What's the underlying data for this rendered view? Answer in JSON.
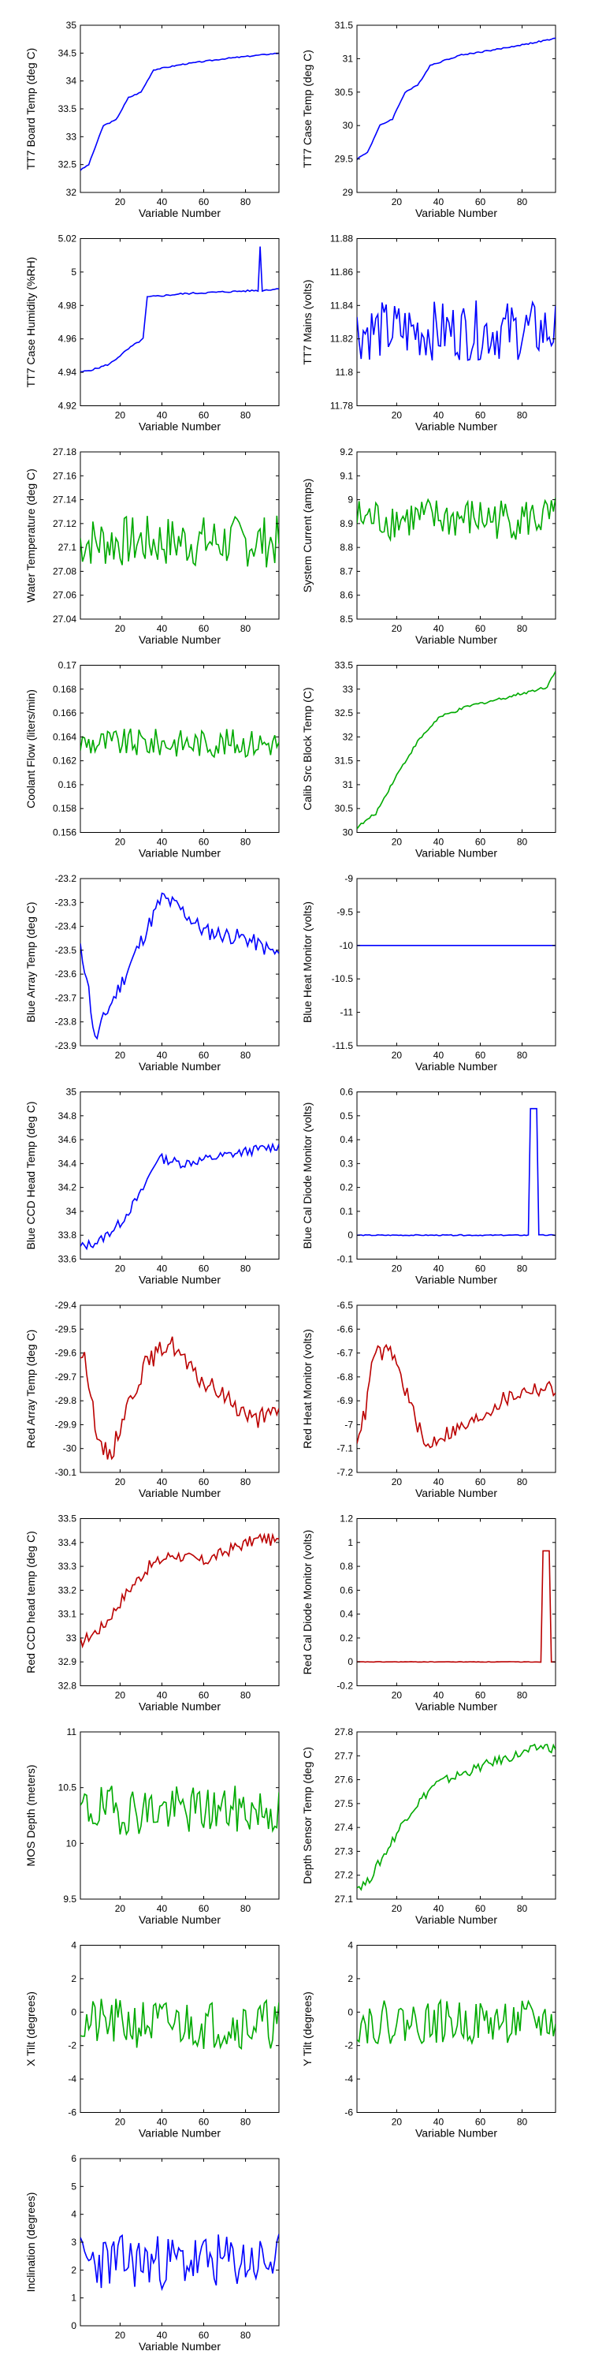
{
  "xlabel": "Variable Number",
  "xlim": [
    1,
    96
  ],
  "xticks": [
    20,
    40,
    60,
    80
  ],
  "colors": {
    "blue": "#0000ff",
    "green": "#00aa00",
    "red": "#bb0000"
  },
  "chart_data": [
    {
      "type": "line",
      "ylabel": "TT7 Board Temp (deg C)",
      "color": "blue",
      "ylim": [
        32,
        35
      ],
      "yticks": [
        32,
        32.5,
        33,
        33.5,
        34,
        34.5,
        35
      ],
      "ytick_labels": [
        "32",
        "32.5",
        "33",
        "33.5",
        "34",
        "34.5",
        "35"
      ],
      "pattern": "rise",
      "shape": [
        [
          1,
          32.4
        ],
        [
          5,
          32.5
        ],
        [
          12,
          33.2
        ],
        [
          18,
          33.3
        ],
        [
          24,
          33.7
        ],
        [
          30,
          33.8
        ],
        [
          36,
          34.2
        ],
        [
          50,
          34.3
        ],
        [
          70,
          34.4
        ],
        [
          96,
          34.5
        ]
      ],
      "noise": 0.01
    },
    {
      "type": "line",
      "ylabel": "TT7 Case Temp (deg C)",
      "color": "blue",
      "ylim": [
        29,
        31.5
      ],
      "yticks": [
        29,
        29.5,
        30,
        30.5,
        31,
        31.5
      ],
      "ytick_labels": [
        "29",
        "29.5",
        "30",
        "30.5",
        "31",
        "31.5"
      ],
      "pattern": "rise",
      "shape": [
        [
          1,
          29.5
        ],
        [
          6,
          29.6
        ],
        [
          12,
          30.0
        ],
        [
          18,
          30.1
        ],
        [
          24,
          30.5
        ],
        [
          30,
          30.6
        ],
        [
          36,
          30.9
        ],
        [
          50,
          31.05
        ],
        [
          70,
          31.15
        ],
        [
          96,
          31.3
        ]
      ],
      "noise": 0.01
    },
    {
      "type": "line",
      "ylabel": "TT7 Case Humidity (%RH)",
      "color": "blue",
      "ylim": [
        4.92,
        5.02
      ],
      "yticks": [
        4.92,
        4.94,
        4.96,
        4.98,
        5,
        5.02
      ],
      "ytick_labels": [
        "4.92",
        "4.94",
        "4.96",
        "4.98",
        "5",
        "5.02"
      ],
      "pattern": "rise",
      "shape": [
        [
          1,
          4.94
        ],
        [
          8,
          4.942
        ],
        [
          15,
          4.945
        ],
        [
          25,
          4.955
        ],
        [
          31,
          4.96
        ],
        [
          33,
          4.985
        ],
        [
          50,
          4.987
        ],
        [
          86,
          4.989
        ],
        [
          87,
          5.015
        ],
        [
          88,
          4.989
        ],
        [
          96,
          4.99
        ]
      ],
      "noise": 0.0005
    },
    {
      "type": "line",
      "ylabel": "TT7 Mains  (volts)",
      "color": "blue",
      "ylim": [
        11.78,
        11.88
      ],
      "yticks": [
        11.78,
        11.8,
        11.82,
        11.84,
        11.86,
        11.88
      ],
      "ytick_labels": [
        "11.78",
        "11.8",
        "11.82",
        "11.84",
        "11.86",
        "11.88"
      ],
      "pattern": "noise",
      "mean": 11.825,
      "noise": 0.018
    },
    {
      "type": "line",
      "ylabel": "Water Temperature (deg C)",
      "color": "green",
      "ylim": [
        27.04,
        27.18
      ],
      "yticks": [
        27.04,
        27.06,
        27.08,
        27.1,
        27.12,
        27.14,
        27.16,
        27.18
      ],
      "ytick_labels": [
        "27.04",
        "27.06",
        "27.08",
        "27.1",
        "27.12",
        "27.14",
        "27.16",
        "27.18"
      ],
      "pattern": "noise",
      "mean": 27.105,
      "noise": 0.022
    },
    {
      "type": "line",
      "ylabel": "System Current (amps)",
      "color": "green",
      "ylim": [
        8.5,
        9.2
      ],
      "yticks": [
        8.5,
        8.6,
        8.7,
        8.8,
        8.9,
        9,
        9.1,
        9.2
      ],
      "ytick_labels": [
        "8.5",
        "8.6",
        "8.7",
        "8.8",
        "8.9",
        "9",
        "9.1",
        "9.2"
      ],
      "pattern": "noise",
      "mean": 8.92,
      "noise": 0.09
    },
    {
      "type": "line",
      "ylabel": "Coolant Flow (liters/min)",
      "color": "green",
      "ylim": [
        0.156,
        0.17
      ],
      "yticks": [
        0.156,
        0.158,
        0.16,
        0.162,
        0.164,
        0.166,
        0.168,
        0.17
      ],
      "ytick_labels": [
        "0.156",
        "0.158",
        "0.16",
        "0.162",
        "0.164",
        "0.166",
        "0.168",
        "0.17"
      ],
      "pattern": "noise",
      "mean": 0.1635,
      "noise": 0.0012
    },
    {
      "type": "line",
      "ylabel": "Calib Src Block Temp (C)",
      "color": "green",
      "ylim": [
        30,
        33.5
      ],
      "yticks": [
        30,
        30.5,
        31,
        31.5,
        32,
        32.5,
        33,
        33.5
      ],
      "ytick_labels": [
        "30",
        "30.5",
        "31",
        "31.5",
        "32",
        "32.5",
        "33",
        "33.5"
      ],
      "pattern": "rise",
      "shape": [
        [
          1,
          30.1
        ],
        [
          10,
          30.4
        ],
        [
          20,
          31.2
        ],
        [
          30,
          31.9
        ],
        [
          40,
          32.4
        ],
        [
          55,
          32.65
        ],
        [
          70,
          32.8
        ],
        [
          88,
          33.0
        ],
        [
          92,
          33.05
        ],
        [
          96,
          33.4
        ]
      ],
      "noise": 0.03
    },
    {
      "type": "line",
      "ylabel": "Blue Array Temp (deg C)",
      "color": "blue",
      "ylim": [
        -23.9,
        -23.2
      ],
      "yticks": [
        -23.9,
        -23.8,
        -23.7,
        -23.6,
        -23.5,
        -23.4,
        -23.3,
        -23.2
      ],
      "ytick_labels": [
        "-23.9",
        "-23.8",
        "-23.7",
        "-23.6",
        "-23.5",
        "-23.4",
        "-23.3",
        "-23.2"
      ],
      "pattern": "rise",
      "shape": [
        [
          1,
          -23.5
        ],
        [
          4,
          -23.6
        ],
        [
          8,
          -23.88
        ],
        [
          14,
          -23.75
        ],
        [
          20,
          -23.65
        ],
        [
          28,
          -23.5
        ],
        [
          40,
          -23.28
        ],
        [
          48,
          -23.32
        ],
        [
          60,
          -23.42
        ],
        [
          80,
          -23.45
        ],
        [
          96,
          -23.52
        ]
      ],
      "noise": 0.035
    },
    {
      "type": "line",
      "ylabel": "Blue Heat Monitor (volts)",
      "color": "blue",
      "ylim": [
        -11.5,
        -9
      ],
      "yticks": [
        -11.5,
        -11,
        -10.5,
        -10,
        -9.5,
        -9
      ],
      "ytick_labels": [
        "-11.5",
        "-11",
        "-10.5",
        "-10",
        "-9.5",
        "-9"
      ],
      "pattern": "flat",
      "mean": -10,
      "noise": 0
    },
    {
      "type": "line",
      "ylabel": "Blue CCD Head Temp (deg C)",
      "color": "blue",
      "ylim": [
        33.6,
        35
      ],
      "yticks": [
        33.6,
        33.8,
        34,
        34.2,
        34.4,
        34.6,
        34.8,
        35
      ],
      "ytick_labels": [
        "33.6",
        "33.8",
        "34",
        "34.2",
        "34.4",
        "34.6",
        "34.8",
        "35"
      ],
      "pattern": "rise",
      "shape": [
        [
          1,
          33.7
        ],
        [
          10,
          33.75
        ],
        [
          20,
          33.9
        ],
        [
          30,
          34.15
        ],
        [
          38,
          34.45
        ],
        [
          50,
          34.4
        ],
        [
          65,
          34.45
        ],
        [
          80,
          34.5
        ],
        [
          96,
          34.55
        ]
      ],
      "noise": 0.04
    },
    {
      "type": "line",
      "ylabel": "Blue Cal Diode Monitor (volts)",
      "color": "blue",
      "ylim": [
        -0.1,
        0.6
      ],
      "yticks": [
        -0.1,
        0,
        0.1,
        0.2,
        0.3,
        0.4,
        0.5,
        0.6
      ],
      "ytick_labels": [
        "-0.1",
        "0",
        "0.1",
        "0.2",
        "0.3",
        "0.4",
        "0.5",
        "0.6"
      ],
      "pattern": "spike",
      "mean": 0,
      "noise": 0.002,
      "spike": [
        84,
        87,
        0.53
      ]
    },
    {
      "type": "line",
      "ylabel": "Red Array Temp (deg C)",
      "color": "red",
      "ylim": [
        -30.1,
        -29.4
      ],
      "yticks": [
        -30.1,
        -30,
        -29.9,
        -29.8,
        -29.7,
        -29.6,
        -29.5,
        -29.4
      ],
      "ytick_labels": [
        "-30.1",
        "-30",
        "-29.9",
        "-29.8",
        "-29.7",
        "-29.6",
        "-29.5",
        "-29.4"
      ],
      "pattern": "rise",
      "shape": [
        [
          1,
          -29.6
        ],
        [
          4,
          -29.65
        ],
        [
          10,
          -30.0
        ],
        [
          16,
          -30.02
        ],
        [
          22,
          -29.85
        ],
        [
          32,
          -29.65
        ],
        [
          44,
          -29.55
        ],
        [
          56,
          -29.7
        ],
        [
          70,
          -29.78
        ],
        [
          84,
          -29.88
        ],
        [
          96,
          -29.85
        ]
      ],
      "noise": 0.04
    },
    {
      "type": "line",
      "ylabel": "Red Heat Monitor (volts)",
      "color": "red",
      "ylim": [
        -7.2,
        -6.5
      ],
      "yticks": [
        -7.2,
        -7.1,
        -7,
        -6.9,
        -6.8,
        -6.7,
        -6.6,
        -6.5
      ],
      "ytick_labels": [
        "-7.2",
        "-7.1",
        "-7",
        "-6.9",
        "-6.8",
        "-6.7",
        "-6.6",
        "-6.5"
      ],
      "pattern": "rise",
      "shape": [
        [
          1,
          -7.05
        ],
        [
          5,
          -6.95
        ],
        [
          9,
          -6.7
        ],
        [
          18,
          -6.7
        ],
        [
          24,
          -6.85
        ],
        [
          34,
          -7.1
        ],
        [
          40,
          -7.05
        ],
        [
          55,
          -7.0
        ],
        [
          70,
          -6.9
        ],
        [
          84,
          -6.85
        ],
        [
          96,
          -6.85
        ]
      ],
      "noise": 0.035
    },
    {
      "type": "line",
      "ylabel": "Red CCD head temp (deg C)",
      "color": "red",
      "ylim": [
        32.8,
        33.5
      ],
      "yticks": [
        32.8,
        32.9,
        33,
        33.1,
        33.2,
        33.3,
        33.4,
        33.5
      ],
      "ytick_labels": [
        "32.8",
        "32.9",
        "33",
        "33.1",
        "33.2",
        "33.3",
        "33.4",
        "33.5"
      ],
      "pattern": "rise",
      "shape": [
        [
          1,
          32.98
        ],
        [
          12,
          33.05
        ],
        [
          24,
          33.2
        ],
        [
          34,
          33.3
        ],
        [
          45,
          33.35
        ],
        [
          60,
          33.32
        ],
        [
          75,
          33.38
        ],
        [
          88,
          33.42
        ],
        [
          96,
          33.4
        ]
      ],
      "noise": 0.025
    },
    {
      "type": "line",
      "ylabel": "Red Cal Diode Monitor (volts)",
      "color": "red",
      "ylim": [
        -0.2,
        1.2
      ],
      "yticks": [
        -0.2,
        0,
        0.2,
        0.4,
        0.6,
        0.8,
        1,
        1.2
      ],
      "ytick_labels": [
        "-0.2",
        "0",
        "0.2",
        "0.4",
        "0.6",
        "0.8",
        "1",
        "1.2"
      ],
      "pattern": "spike",
      "mean": 0,
      "noise": 0.002,
      "spike": [
        90,
        93,
        0.93
      ]
    },
    {
      "type": "line",
      "ylabel": "MOS Depth  (meters)",
      "color": "green",
      "ylim": [
        9.5,
        11
      ],
      "yticks": [
        9.5,
        10,
        10.5,
        11
      ],
      "ytick_labels": [
        "9.5",
        "10",
        "10.5",
        "11"
      ],
      "pattern": "noise",
      "mean": 10.3,
      "noise": 0.22
    },
    {
      "type": "line",
      "ylabel": "Depth Sensor Temp (deg C)",
      "color": "green",
      "ylim": [
        27.1,
        27.8
      ],
      "yticks": [
        27.1,
        27.2,
        27.3,
        27.4,
        27.5,
        27.6,
        27.7,
        27.8
      ],
      "ytick_labels": [
        "27.1",
        "27.2",
        "27.3",
        "27.4",
        "27.5",
        "27.6",
        "27.7",
        "27.8"
      ],
      "pattern": "rise",
      "shape": [
        [
          1,
          27.15
        ],
        [
          6,
          27.17
        ],
        [
          15,
          27.3
        ],
        [
          25,
          27.45
        ],
        [
          38,
          27.58
        ],
        [
          50,
          27.62
        ],
        [
          65,
          27.67
        ],
        [
          80,
          27.71
        ],
        [
          90,
          27.74
        ],
        [
          96,
          27.73
        ]
      ],
      "noise": 0.02
    },
    {
      "type": "line",
      "ylabel": "X Tilt  (degrees)",
      "color": "green",
      "ylim": [
        -6,
        4
      ],
      "yticks": [
        -6,
        -4,
        -2,
        0,
        2,
        4
      ],
      "ytick_labels": [
        "-6",
        "-4",
        "-2",
        "0",
        "2",
        "4"
      ],
      "pattern": "noise",
      "mean": -0.7,
      "noise": 1.5
    },
    {
      "type": "line",
      "ylabel": "Y Tilt  (degrees)",
      "color": "green",
      "ylim": [
        -6,
        4
      ],
      "yticks": [
        -6,
        -4,
        -2,
        0,
        2,
        4
      ],
      "ytick_labels": [
        "-6",
        "-4",
        "-2",
        "0",
        "2",
        "4"
      ],
      "pattern": "noise",
      "mean": -0.6,
      "noise": 1.3
    },
    {
      "type": "line",
      "ylabel": "Inclination  (degrees)",
      "color": "blue",
      "ylim": [
        0,
        6
      ],
      "yticks": [
        0,
        1,
        2,
        3,
        4,
        5,
        6
      ],
      "ytick_labels": [
        "0",
        "1",
        "2",
        "3",
        "4",
        "5",
        "6"
      ],
      "pattern": "noise",
      "mean": 2.3,
      "noise": 1.0
    }
  ]
}
